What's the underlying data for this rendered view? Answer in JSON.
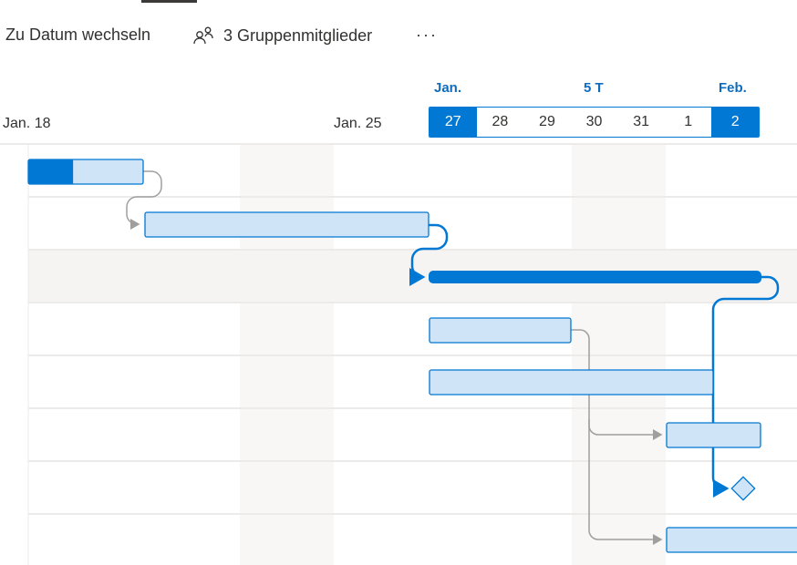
{
  "toolbar": {
    "go_to_date": "Zu Datum wechseln",
    "members": "3 Gruppenmitglieder",
    "more": "···"
  },
  "timeline": {
    "month_start": "Jan.",
    "range_label": "5 T",
    "month_end": "Feb.",
    "week_labels": [
      "Jan. 18",
      "Jan. 25"
    ],
    "days": [
      "27",
      "28",
      "29",
      "30",
      "31",
      "1",
      "2"
    ]
  },
  "tasks": [
    {
      "progress": 0.39
    },
    {
      "progress": 0
    },
    {
      "critical": true
    },
    {
      "progress": 0
    },
    {
      "progress": 0
    },
    {
      "progress": 0
    },
    {
      "milestone": true
    },
    {
      "progress": 0
    }
  ],
  "colors": {
    "accent": "#0078d4",
    "bar_fill": "#cfe4f7",
    "weekend": "#f8f7f6",
    "connector": "#a19f9d"
  }
}
